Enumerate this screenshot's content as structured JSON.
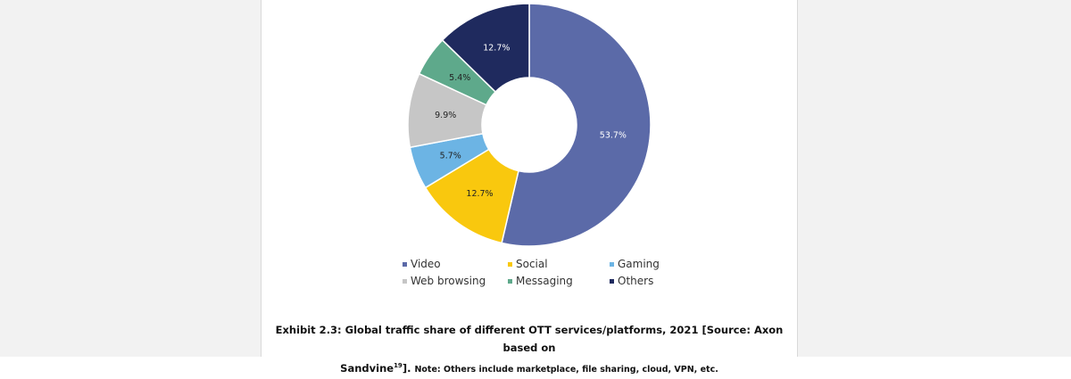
{
  "chart_data": {
    "type": "donut",
    "title": "",
    "categories": [
      "Video",
      "Social",
      "Gaming",
      "Web browsing",
      "Messaging",
      "Others"
    ],
    "values": [
      53.7,
      12.7,
      5.7,
      9.9,
      5.4,
      12.7
    ],
    "labels": [
      "53.7%",
      "12.7%",
      "5.7%",
      "9.9%",
      "5.4%",
      "12.7%"
    ],
    "colors": [
      "#5b6aa8",
      "#f9c80e",
      "#6cb4e4",
      "#c6c6c6",
      "#5ea98b",
      "#1f2a5e"
    ],
    "label_colors": [
      "#ffffff",
      "#222222",
      "#222222",
      "#222222",
      "#222222",
      "#ffffff"
    ],
    "legend_position": "bottom",
    "unit": "%"
  },
  "caption": {
    "line1": "Exhibit 2.3: Global traffic share of different OTT services/platforms, 2021 [Source: Axon based on",
    "line2_main": "Sandvine",
    "line2_sup": "19",
    "line2_after": "]. ",
    "note": "Note: Others include marketplace, file sharing, cloud, VPN, etc."
  }
}
